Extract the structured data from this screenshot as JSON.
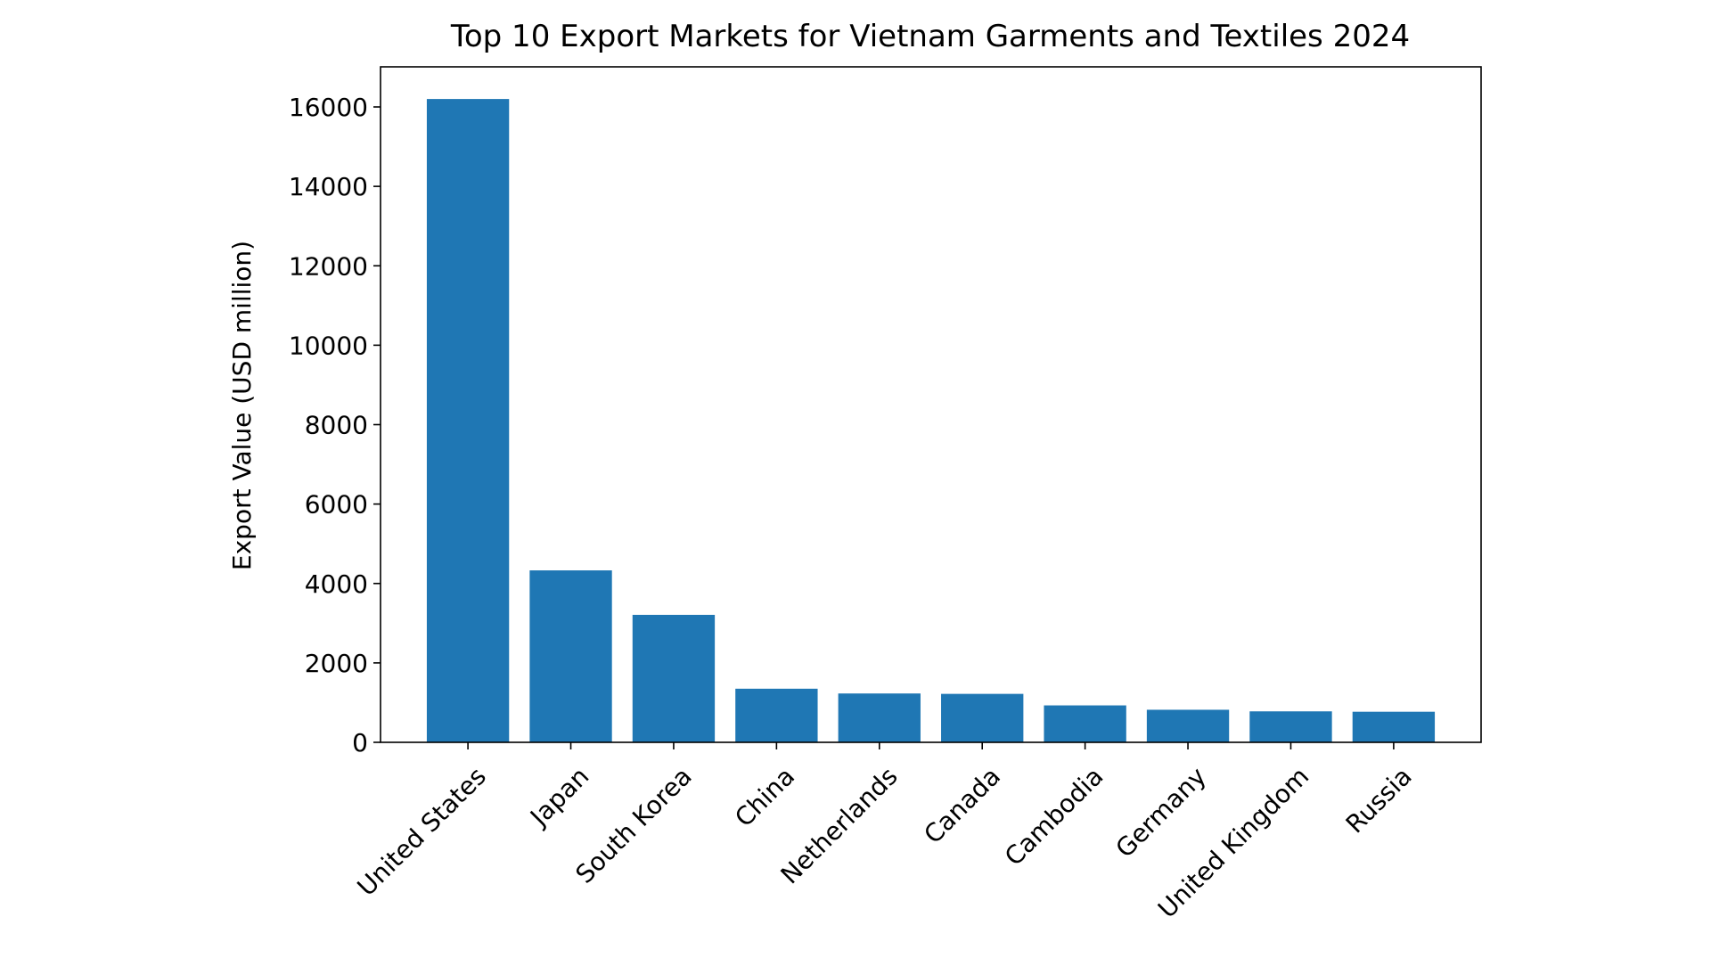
{
  "chart_data": {
    "type": "bar",
    "title": "Top 10 Export Markets for Vietnam Garments and Textiles 2024",
    "xlabel": "",
    "ylabel": "Export Value (USD million)",
    "categories": [
      "United States",
      "Japan",
      "South Korea",
      "China",
      "Netherlands",
      "Canada",
      "Cambodia",
      "Germany",
      "United Kingdom",
      "Russia"
    ],
    "values": [
      16200,
      4330,
      3210,
      1350,
      1230,
      1220,
      930,
      820,
      780,
      770
    ],
    "ylim": [
      0,
      17010
    ],
    "yticks": [
      0,
      2000,
      4000,
      6000,
      8000,
      10000,
      12000,
      14000,
      16000
    ],
    "ytick_labels": [
      "0",
      "2000",
      "4000",
      "6000",
      "8000",
      "10000",
      "12000",
      "14000",
      "16000"
    ],
    "bar_color": "#1f77b4",
    "grid": false,
    "legend": "none"
  }
}
